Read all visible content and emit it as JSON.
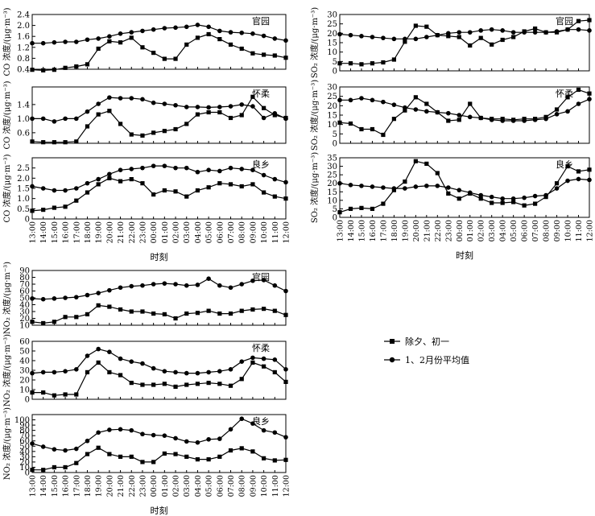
{
  "time_labels": [
    "13:00",
    "14:00",
    "15:00",
    "16:00",
    "17:00",
    "18:00",
    "19:00",
    "20:00",
    "21:00",
    "22:00",
    "23:00",
    "00:00",
    "01:00",
    "02:00",
    "03:00",
    "04:00",
    "05:00",
    "06:00",
    "07:00",
    "08:00",
    "09:00",
    "10:00",
    "11:00",
    "12:00"
  ],
  "xlabel": "时刻",
  "legend": {
    "holiday": "除夕、初一",
    "average": "1、2月份平均值"
  },
  "chart_data": [
    {
      "id": "co-guanyuan",
      "type": "line",
      "pollutant": "CO",
      "site": "官园",
      "ylabel": "CO 浓度/(μg·m⁻³)",
      "ylim": [
        0.4,
        2.4
      ],
      "yticks": [
        0.4,
        0.8,
        1.2,
        1.6,
        2.0,
        2.4
      ],
      "ytick_labels": [
        "0.4",
        "0.8",
        "1.2",
        "1.6",
        "2.0",
        "2.4"
      ],
      "series": [
        {
          "name": "除夕、初一",
          "marker": "square",
          "values": [
            0.38,
            0.36,
            0.38,
            0.45,
            0.5,
            0.58,
            1.15,
            1.42,
            1.38,
            1.55,
            1.2,
            1.0,
            0.78,
            0.78,
            1.3,
            1.55,
            1.68,
            1.5,
            1.3,
            1.15,
            0.98,
            0.93,
            0.9,
            0.82
          ]
        },
        {
          "name": "1、2月份平均值",
          "marker": "circle",
          "values": [
            1.35,
            1.35,
            1.38,
            1.4,
            1.4,
            1.48,
            1.52,
            1.6,
            1.7,
            1.75,
            1.8,
            1.85,
            1.9,
            1.92,
            1.95,
            2.02,
            1.95,
            1.8,
            1.75,
            1.73,
            1.7,
            1.62,
            1.52,
            1.45
          ]
        }
      ]
    },
    {
      "id": "co-huairou",
      "type": "line",
      "pollutant": "CO",
      "site": "怀柔",
      "ylabel": "CO 浓度/(μg·m⁻³)",
      "ylim": [
        0.3,
        1.9
      ],
      "yticks": [
        0.6,
        1.0,
        1.4
      ],
      "ytick_labels": [
        "0.6",
        "1.0",
        "1.4"
      ],
      "series": [
        {
          "name": "除夕、初一",
          "marker": "square",
          "values": [
            0.35,
            0.33,
            0.33,
            0.33,
            0.35,
            0.78,
            1.12,
            1.22,
            0.85,
            0.55,
            0.52,
            0.6,
            0.65,
            0.7,
            0.85,
            1.12,
            1.18,
            1.18,
            1.02,
            1.1,
            1.62,
            1.3,
            1.1,
            1.02
          ]
        },
        {
          "name": "1、2月份平均值",
          "marker": "circle",
          "values": [
            1.0,
            1.0,
            0.92,
            1.0,
            1.0,
            1.2,
            1.42,
            1.6,
            1.58,
            1.58,
            1.55,
            1.45,
            1.42,
            1.38,
            1.33,
            1.33,
            1.32,
            1.33,
            1.35,
            1.4,
            1.35,
            1.02,
            1.15,
            1.0
          ]
        }
      ]
    },
    {
      "id": "co-liangxiang",
      "type": "line",
      "pollutant": "CO",
      "site": "良乡",
      "ylabel": "CO 浓度/(μg·m⁻³)",
      "ylim": [
        0,
        3.0
      ],
      "yticks": [
        0,
        0.5,
        1.0,
        1.5,
        2.0,
        2.5
      ],
      "ytick_labels": [
        "0",
        "0.5",
        "1.0",
        "1.5",
        "2.0",
        "2.5"
      ],
      "series": [
        {
          "name": "除夕、初一",
          "marker": "square",
          "values": [
            0.4,
            0.45,
            0.55,
            0.6,
            0.9,
            1.3,
            1.7,
            2.0,
            1.85,
            1.95,
            1.75,
            1.2,
            1.4,
            1.35,
            1.1,
            1.4,
            1.55,
            1.75,
            1.7,
            1.6,
            1.7,
            1.3,
            1.1,
            1.0
          ]
        },
        {
          "name": "1、2月份平均值",
          "marker": "circle",
          "values": [
            1.6,
            1.5,
            1.4,
            1.4,
            1.5,
            1.75,
            1.95,
            2.2,
            2.4,
            2.45,
            2.5,
            2.6,
            2.6,
            2.5,
            2.5,
            2.3,
            2.4,
            2.35,
            2.5,
            2.45,
            2.4,
            2.15,
            1.95,
            1.8
          ]
        }
      ]
    },
    {
      "id": "so2-guanyuan",
      "type": "line",
      "pollutant": "SO₂",
      "site": "官园",
      "ylabel": "SO₂ 浓度/(μg·m⁻³)",
      "ylim": [
        0,
        30
      ],
      "yticks": [
        0,
        5,
        10,
        15,
        20,
        25,
        30
      ],
      "ytick_labels": [
        "0",
        "5",
        "10",
        "15",
        "20",
        "25",
        "30"
      ],
      "series": [
        {
          "name": "除夕、初一",
          "marker": "square",
          "values": [
            4,
            4,
            3.5,
            4,
            4.5,
            6,
            15.5,
            24,
            23.5,
            19,
            18.5,
            18,
            13.5,
            17.5,
            14,
            16.5,
            18,
            21,
            22.5,
            20.5,
            20.5,
            22,
            26.5,
            27
          ]
        },
        {
          "name": "1、2月份平均值",
          "marker": "circle",
          "values": [
            19.5,
            19,
            18.5,
            18,
            17.5,
            17,
            17,
            17,
            18,
            19,
            20,
            20.5,
            20.5,
            21.5,
            22,
            21.5,
            20.5,
            20.5,
            20.5,
            20.5,
            21,
            22,
            22,
            21.5
          ]
        }
      ]
    },
    {
      "id": "so2-huairou",
      "type": "line",
      "pollutant": "SO₂",
      "site": "怀柔",
      "ylabel": "SO₂ 浓度/(μg·m⁻³)",
      "ylim": [
        0,
        30
      ],
      "yticks": [
        0,
        5,
        10,
        15,
        20,
        25,
        30
      ],
      "ytick_labels": [
        "0",
        "5",
        "10",
        "15",
        "20",
        "25",
        "30"
      ],
      "series": [
        {
          "name": "除夕、初一",
          "marker": "square",
          "values": [
            11,
            10.5,
            7.5,
            7.5,
            4.5,
            13,
            17.5,
            24.5,
            21,
            16.5,
            12,
            12.5,
            21,
            13.5,
            13,
            13,
            12.5,
            13,
            13,
            14,
            18,
            24.5,
            28.5,
            26.5
          ]
        },
        {
          "name": "1、2月份平均值",
          "marker": "circle",
          "values": [
            23,
            23,
            24,
            23,
            22,
            20.5,
            19,
            18,
            17,
            16.5,
            16,
            15,
            14,
            13.5,
            12.5,
            12,
            12,
            12,
            12.5,
            13,
            15.5,
            17,
            21,
            23.5
          ]
        }
      ]
    },
    {
      "id": "so2-liangxiang",
      "type": "line",
      "pollutant": "SO₂",
      "site": "良乡",
      "ylabel": "SO₂ 浓度/(μg·m⁻³)",
      "ylim": [
        0,
        35
      ],
      "yticks": [
        0,
        5,
        10,
        15,
        20,
        25,
        30,
        35
      ],
      "ytick_labels": [
        "0",
        "5",
        "10",
        "15",
        "20",
        "25",
        "30",
        "35"
      ],
      "series": [
        {
          "name": "除夕、初一",
          "marker": "square",
          "values": [
            3,
            5,
            5.5,
            5,
            8,
            16,
            21,
            33,
            31.5,
            26,
            14,
            11,
            14,
            11,
            8.5,
            8.5,
            9,
            7,
            8,
            12,
            20,
            30,
            27,
            28
          ]
        },
        {
          "name": "1、2月份平均值",
          "marker": "circle",
          "values": [
            20,
            19,
            18.5,
            18,
            17.5,
            17,
            17,
            18,
            18.5,
            18.5,
            17.5,
            16,
            14.5,
            13,
            12,
            11,
            11,
            11.5,
            12.5,
            13,
            17,
            21.5,
            22.5,
            22
          ]
        }
      ]
    },
    {
      "id": "no2-guanyuan",
      "type": "line",
      "pollutant": "NO₂",
      "site": "官园",
      "ylabel": "NO₂ 浓度/(μg·m⁻³)",
      "ylim": [
        10,
        90
      ],
      "yticks": [
        10,
        20,
        30,
        40,
        50,
        60,
        70,
        80,
        90
      ],
      "ytick_labels": [
        "10",
        "20",
        "30",
        "40",
        "50",
        "60",
        "70",
        "80",
        "90"
      ],
      "series": [
        {
          "name": "除夕、初一",
          "marker": "square",
          "values": [
            15,
            13,
            15,
            22,
            22,
            26,
            39,
            37,
            33,
            30,
            30,
            27,
            26,
            20,
            27,
            28,
            31,
            27,
            27,
            31,
            33,
            34,
            31,
            25
          ]
        },
        {
          "name": "1、2月份平均值",
          "marker": "circle",
          "values": [
            49,
            48,
            49,
            50,
            51,
            54,
            57,
            61,
            65,
            67,
            68,
            70,
            71,
            70,
            68,
            69,
            78,
            68,
            65,
            70,
            75,
            76,
            68,
            60
          ]
        }
      ]
    },
    {
      "id": "no2-huairou",
      "type": "line",
      "pollutant": "NO₂",
      "site": "怀柔",
      "ylabel": "NO₂ 浓度/(μg·m⁻³)",
      "ylim": [
        0,
        60
      ],
      "yticks": [
        0,
        10,
        20,
        30,
        40,
        50,
        60
      ],
      "ytick_labels": [
        "0",
        "10",
        "20",
        "30",
        "40",
        "50",
        "60"
      ],
      "series": [
        {
          "name": "除夕、初一",
          "marker": "square",
          "values": [
            7,
            7,
            4,
            5,
            5,
            28,
            38,
            28,
            25,
            17,
            15,
            15,
            16,
            13,
            15,
            16,
            17,
            16,
            14,
            21,
            38,
            34,
            28,
            18
          ]
        },
        {
          "name": "1、2月份平均值",
          "marker": "circle",
          "values": [
            27,
            28,
            28,
            29,
            31,
            45,
            52,
            49,
            42,
            39,
            37,
            32,
            29,
            28,
            27,
            27,
            28,
            29,
            31,
            39,
            43,
            42,
            41,
            31
          ]
        }
      ]
    },
    {
      "id": "no2-liangxiang",
      "type": "line",
      "pollutant": "NO₂",
      "site": "良乡",
      "ylabel": "NO₂ 浓度/(μg·m⁻³)",
      "ylim": [
        0,
        110
      ],
      "yticks": [
        0,
        10,
        20,
        30,
        40,
        50,
        60,
        70,
        80,
        90,
        100
      ],
      "ytick_labels": [
        "0",
        "10",
        "20",
        "30",
        "40",
        "50",
        "60",
        "70",
        "80",
        "90",
        "100"
      ],
      "series": [
        {
          "name": "除夕、初一",
          "marker": "square",
          "values": [
            5,
            5,
            10,
            10,
            18,
            35,
            47,
            35,
            30,
            30,
            20,
            20,
            36,
            35,
            30,
            25,
            25,
            30,
            42,
            46,
            40,
            27,
            23,
            24
          ]
        },
        {
          "name": "1、2月份平均值",
          "marker": "circle",
          "values": [
            55,
            49,
            44,
            42,
            45,
            60,
            76,
            81,
            82,
            80,
            73,
            71,
            70,
            65,
            59,
            57,
            63,
            64,
            82,
            102,
            93,
            80,
            76,
            67
          ]
        }
      ]
    }
  ]
}
